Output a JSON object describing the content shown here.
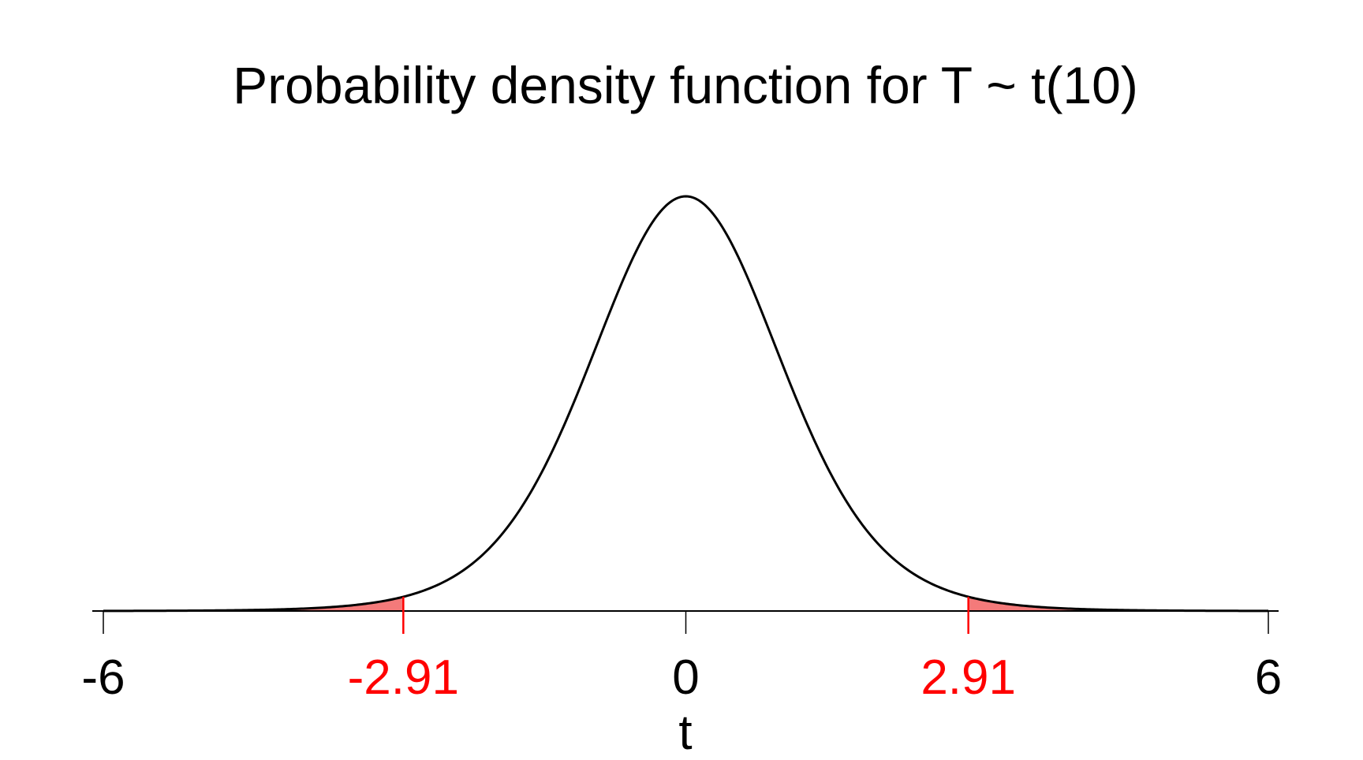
{
  "chart_data": {
    "type": "area",
    "title": "Probability density function for T ~ t(10)",
    "xlabel": "t",
    "ylabel": "",
    "distribution": "t",
    "degrees_of_freedom": 10,
    "xlim": [
      -6,
      6
    ],
    "ylim": [
      0,
      0.39
    ],
    "grid": false,
    "legend": "none",
    "critical_values": [
      -2.91,
      2.91
    ],
    "shaded_regions": [
      {
        "from": -6,
        "to": -2.91
      },
      {
        "from": 2.91,
        "to": 6
      }
    ],
    "x_ticks": [
      {
        "value": -6,
        "label": "-6",
        "color": "#000000"
      },
      {
        "value": -2.91,
        "label": "-2.91",
        "color": "#ff0000"
      },
      {
        "value": 0,
        "label": "0",
        "color": "#000000"
      },
      {
        "value": 2.91,
        "label": "2.91",
        "color": "#ff0000"
      },
      {
        "value": 6,
        "label": "6",
        "color": "#000000"
      }
    ],
    "colors": {
      "curve": "#000000",
      "shade": "#f47a7a",
      "critical": "#ff0000",
      "axis": "#000000"
    }
  }
}
